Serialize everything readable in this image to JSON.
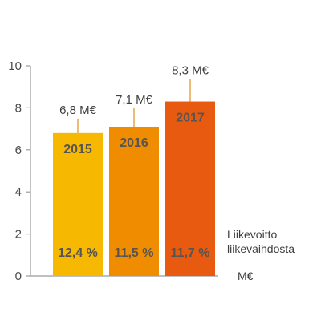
{
  "chart_data": {
    "type": "bar",
    "categories": [
      "2015",
      "2016",
      "2017"
    ],
    "values": [
      6.8,
      7.1,
      8.3
    ],
    "value_labels": [
      "6,8 M€",
      "7,1 M€",
      "8,3 M€"
    ],
    "percent_labels": [
      "12,4 %",
      "11,5 %",
      "11,7 %"
    ],
    "colors": [
      "#f6b800",
      "#f08c00",
      "#e85a0f"
    ],
    "yticks": [
      "0",
      "2",
      "4",
      "6",
      "8",
      "10"
    ],
    "ylim": [
      0,
      10
    ],
    "percent_caption_line1": "Liikevoitto",
    "percent_caption_line2": "liikevaihdosta",
    "unit_label": "M€",
    "grid": false,
    "axis_color": "#9a9a9a",
    "whisker_color": "#e8a24a"
  }
}
